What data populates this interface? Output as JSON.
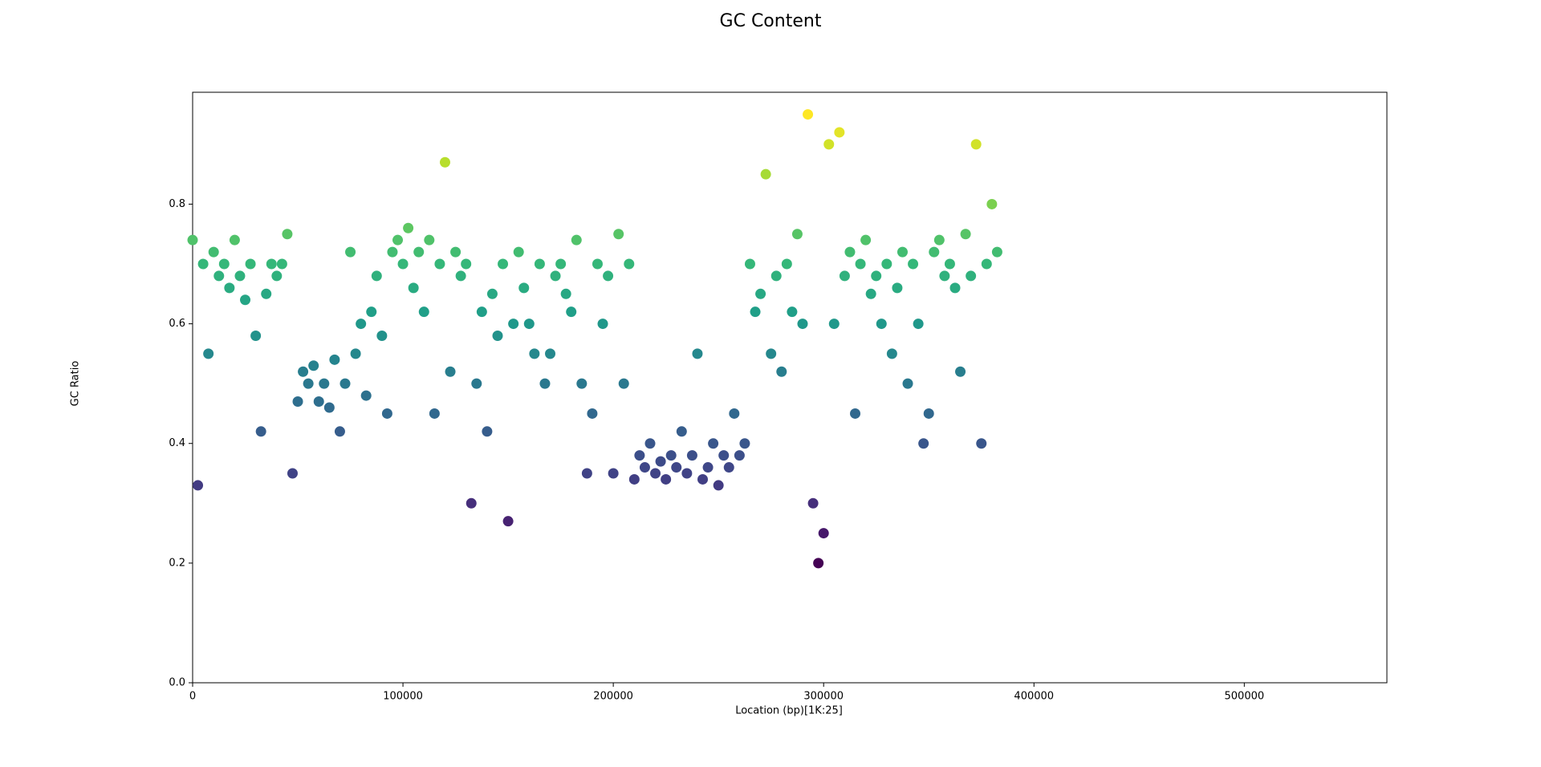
{
  "chart_data": {
    "type": "scatter",
    "title": "GC Content",
    "x_label": "Location (bp)[1K:25]",
    "y_label": "GC Ratio",
    "colormap": "viridis",
    "xlim": [
      0,
      567800
    ],
    "ylim": [
      0,
      0.987
    ],
    "xticks": [
      0,
      100000,
      200000,
      300000,
      400000,
      500000
    ],
    "yticks": [
      {
        "value": 0,
        "label": "0.0"
      },
      0.2,
      0.4,
      0.6,
      0.8
    ],
    "x": [
      0,
      2500,
      5000,
      7500,
      10000,
      12500,
      15000,
      17500,
      20000,
      22500,
      25000,
      27500,
      30000,
      32500,
      35000,
      37500,
      40000,
      42500,
      45000,
      47500,
      50000,
      52500,
      55000,
      57500,
      60000,
      62500,
      65000,
      67500,
      70000,
      72500,
      75000,
      77500,
      80000,
      82500,
      85000,
      87500,
      90000,
      92500,
      95000,
      97500,
      100000,
      102500,
      105000,
      107500,
      110000,
      112500,
      115000,
      117500,
      120000,
      122500,
      125000,
      127500,
      130000,
      132500,
      135000,
      137500,
      140000,
      142500,
      145000,
      147500,
      150000,
      152500,
      155000,
      157500,
      160000,
      162500,
      165000,
      167500,
      170000,
      172500,
      175000,
      177500,
      180000,
      182500,
      185000,
      187500,
      190000,
      192500,
      195000,
      197500,
      200000,
      202500,
      205000,
      207500,
      210000,
      212500,
      215000,
      217500,
      220000,
      222500,
      225000,
      227500,
      230000,
      232500,
      235000,
      237500,
      240000,
      242500,
      245000,
      247500,
      250000,
      252500,
      255000,
      257500,
      260000,
      262500,
      265000,
      267500,
      270000,
      272500,
      275000,
      277500,
      280000,
      282500,
      285000,
      287500,
      290000,
      292500,
      295000,
      297500,
      300000,
      302500,
      305000,
      307500,
      310000,
      312500,
      315000,
      317500,
      320000,
      322500,
      325000,
      327500,
      330000,
      332500,
      335000,
      337500,
      340000,
      342500,
      345000,
      347500,
      350000,
      352500,
      355000,
      357500,
      360000,
      362500,
      365000,
      367500,
      370000,
      372500,
      375000,
      377500,
      380000,
      382500
    ],
    "values": [
      0.74,
      0.33,
      0.7,
      0.55,
      0.72,
      0.68,
      0.7,
      0.66,
      0.74,
      0.68,
      0.64,
      0.7,
      0.58,
      0.42,
      0.65,
      0.7,
      0.68,
      0.7,
      0.75,
      0.35,
      0.47,
      0.52,
      0.5,
      0.53,
      0.47,
      0.5,
      0.46,
      0.54,
      0.42,
      0.5,
      0.72,
      0.55,
      0.6,
      0.48,
      0.62,
      0.68,
      0.58,
      0.45,
      0.72,
      0.74,
      0.7,
      0.76,
      0.66,
      0.72,
      0.62,
      0.74,
      0.45,
      0.7,
      0.87,
      0.52,
      0.72,
      0.68,
      0.7,
      0.3,
      0.5,
      0.62,
      0.42,
      0.65,
      0.58,
      0.7,
      0.27,
      0.6,
      0.72,
      0.66,
      0.6,
      0.55,
      0.7,
      0.5,
      0.55,
      0.68,
      0.7,
      0.65,
      0.62,
      0.74,
      0.5,
      0.35,
      0.45,
      0.7,
      0.6,
      0.68,
      0.35,
      0.75,
      0.5,
      0.7,
      0.34,
      0.38,
      0.36,
      0.4,
      0.35,
      0.37,
      0.34,
      0.38,
      0.36,
      0.42,
      0.35,
      0.38,
      0.55,
      0.34,
      0.36,
      0.4,
      0.33,
      0.38,
      0.36,
      0.45,
      0.38,
      0.4,
      0.7,
      0.62,
      0.65,
      0.85,
      0.55,
      0.68,
      0.52,
      0.7,
      0.62,
      0.75,
      0.6,
      0.95,
      0.3,
      0.2,
      0.25,
      0.9,
      0.6,
      0.92,
      0.68,
      0.72,
      0.45,
      0.7,
      0.74,
      0.65,
      0.68,
      0.6,
      0.7,
      0.55,
      0.66,
      0.72,
      0.5,
      0.7,
      0.6,
      0.4,
      0.45,
      0.72,
      0.74,
      0.68,
      0.7,
      0.66,
      0.52,
      0.75,
      0.68,
      0.9,
      0.4,
      0.7,
      0.8,
      0.72
    ]
  }
}
